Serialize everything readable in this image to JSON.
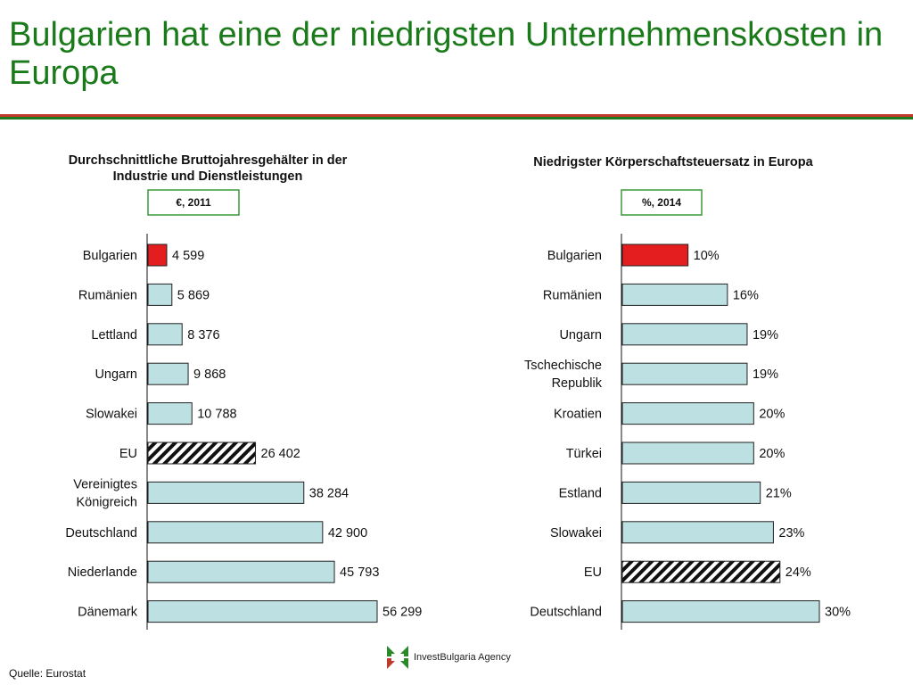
{
  "title": "Bulgarien hat eine der niedrigsten Unternehmenskosten in Europa",
  "chart_data": [
    {
      "type": "bar",
      "orientation": "horizontal",
      "title_lines": [
        "Durchschnittliche Bruttojahresgehälter in der",
        "Industrie und Dienstleistungen"
      ],
      "unit": "€, 2011",
      "categories": [
        [
          "Bulgarien"
        ],
        [
          "Rumänien"
        ],
        [
          "Lettland"
        ],
        [
          "Ungarn"
        ],
        [
          "Slowakei"
        ],
        [
          "EU"
        ],
        [
          "Vereinigtes",
          "Königreich"
        ],
        [
          "Deutschland"
        ],
        [
          "Niederlande"
        ],
        [
          "Dänemark"
        ]
      ],
      "values": [
        4599,
        5869,
        8376,
        9868,
        10788,
        26402,
        38284,
        42900,
        45793,
        56299
      ],
      "labels": [
        "4 599",
        "5 869",
        "8 376",
        "9 868",
        "10 788",
        "26 402",
        "38 284",
        "42 900",
        "45 793",
        "56 299"
      ],
      "styles": [
        "highlight",
        "normal",
        "normal",
        "normal",
        "normal",
        "hatched",
        "normal",
        "normal",
        "normal",
        "normal"
      ],
      "xlim": [
        0,
        56299
      ]
    },
    {
      "type": "bar",
      "orientation": "horizontal",
      "title_lines": [
        "Niedrigster Körperschaftsteuersatz in Europa"
      ],
      "unit": "%, 2014",
      "categories": [
        [
          "Bulgarien"
        ],
        [
          "Rumänien"
        ],
        [
          "Ungarn"
        ],
        [
          "Tschechische",
          "Republik"
        ],
        [
          "Kroatien"
        ],
        [
          "Türkei"
        ],
        [
          "Estland"
        ],
        [
          "Slowakei"
        ],
        [
          "EU"
        ],
        [
          "Deutschland"
        ]
      ],
      "values": [
        10,
        16,
        19,
        19,
        20,
        20,
        21,
        23,
        24,
        30
      ],
      "labels": [
        "10%",
        "16%",
        "19%",
        "19%",
        "20%",
        "20%",
        "21%",
        "23%",
        "24%",
        "30%"
      ],
      "styles": [
        "highlight",
        "normal",
        "normal",
        "normal",
        "normal",
        "normal",
        "normal",
        "normal",
        "hatched",
        "normal"
      ],
      "xlim": [
        0,
        30
      ]
    }
  ],
  "colors": {
    "bar": "#bde0e3",
    "highlight": "#e41e1e",
    "title": "#1a7a1a",
    "unit_border": "#3a9a3a",
    "rule_green": "#1e7a1e",
    "rule_red": "#c0392b"
  },
  "source": "Quelle: Eurostat",
  "logo": {
    "text": "InvestBulgaria Agency",
    "icon": "investbulgaria-logo-icon"
  }
}
